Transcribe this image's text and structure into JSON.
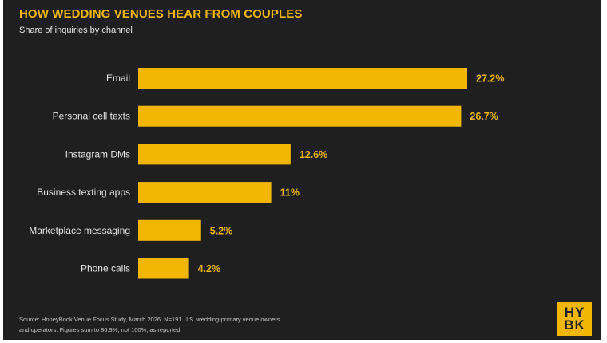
{
  "header": {
    "title": "HOW WEDDING VENUES HEAR FROM COUPLES",
    "subtitle": "Share of inquiries by channel"
  },
  "footer": {
    "source_line1": "Source: HoneyBook Venue Focus Study, March 2026. N=191 U.S. wedding-primary venue owners",
    "source_line2": "and operators. Figures sum to 86.9%, not 100%, as reported."
  },
  "logo": {
    "line1": "HY",
    "line2": "BK",
    "color": "#f2b705"
  },
  "chart_data": {
    "type": "bar",
    "orientation": "horizontal",
    "title": "HOW WEDDING VENUES HEAR FROM COUPLES",
    "subtitle": "Share of inquiries by channel",
    "categories": [
      "Email",
      "Personal cell texts",
      "Instagram DMs",
      "Business texting apps",
      "Marketplace messaging",
      "Phone calls"
    ],
    "values": [
      27.2,
      26.7,
      12.6,
      11,
      5.2,
      4.2
    ],
    "value_labels": [
      "27.2%",
      "26.7%",
      "12.6%",
      "11%",
      "5.2%",
      "4.2%"
    ],
    "xlim": [
      0,
      27.2
    ],
    "grid": false,
    "bar_color": "#f2b705",
    "background_color": "#1f1f1f"
  }
}
